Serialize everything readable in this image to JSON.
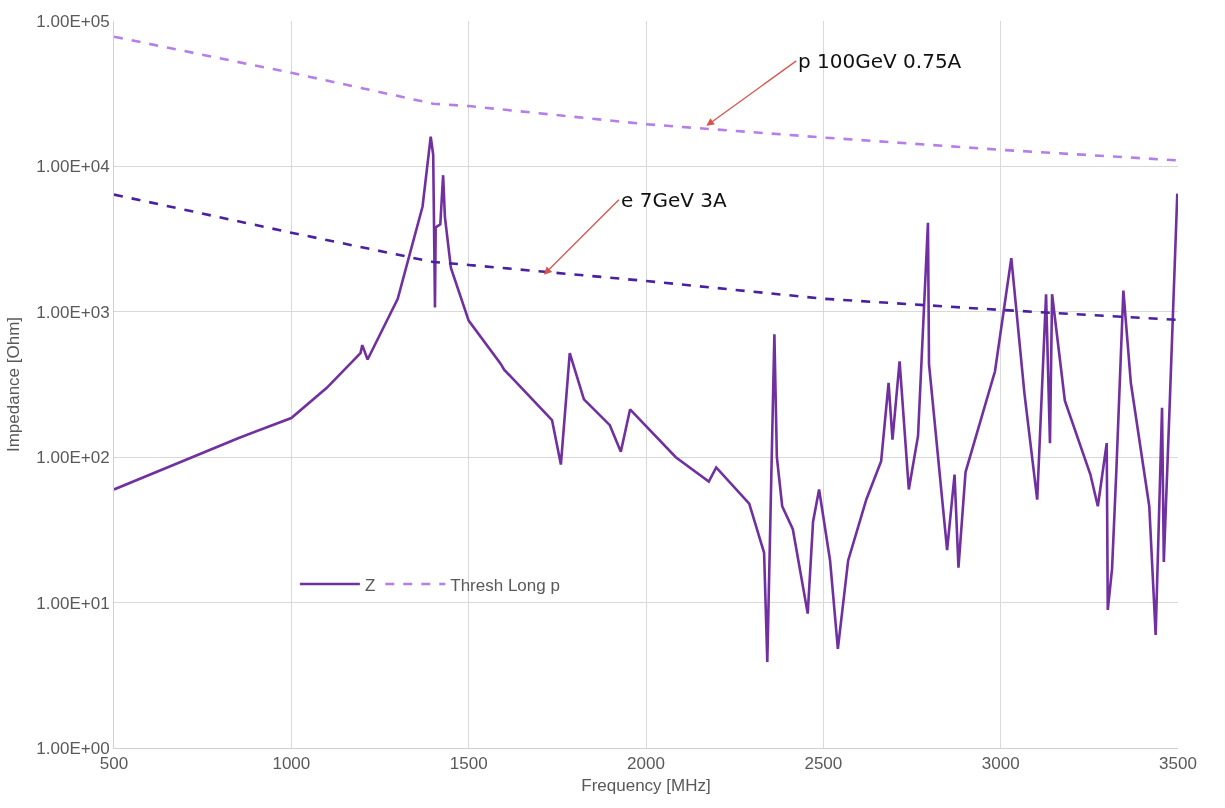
{
  "chart_data": {
    "type": "line",
    "xlabel": "Frequency [MHz]",
    "ylabel": "Impedance [Ohm]",
    "log": "y",
    "xlim": [
      500,
      3500
    ],
    "xticks": [
      500,
      1000,
      1500,
      2000,
      2500,
      3000,
      3500
    ],
    "ylim": [
      1,
      100000
    ],
    "yticks": [
      {
        "value": 1,
        "label": "1.00E+00"
      },
      {
        "value": 10,
        "label": "1.00E+01"
      },
      {
        "value": 100,
        "label": "1.00E+02"
      },
      {
        "value": 1000,
        "label": "1.00E+03"
      },
      {
        "value": 10000,
        "label": "1.00E+04"
      },
      {
        "value": 100000,
        "label": "1.00E+05"
      }
    ],
    "grid": true,
    "legend": "bottom left",
    "marker": "none",
    "series": [
      {
        "name": "Z",
        "color": "#7030a0",
        "line_style": "solid",
        "x": [
          500,
          850,
          1000,
          1100,
          1195,
          1200,
          1215,
          1300,
          1370,
          1393,
          1400,
          1405,
          1407,
          1420,
          1428,
          1433,
          1450,
          1500,
          1590,
          1600,
          1735,
          1760,
          1785,
          1825,
          1898,
          1929,
          1955,
          2084,
          2177,
          2198,
          2291,
          2333,
          2342,
          2362,
          2369,
          2384,
          2414,
          2456,
          2471,
          2488,
          2519,
          2541,
          2570,
          2621,
          2663,
          2684,
          2695,
          2715,
          2741,
          2767,
          2795,
          2798,
          2849,
          2870,
          2881,
          2901,
          2984,
          3030,
          3067,
          3103,
          3128,
          3139,
          3145,
          3181,
          3253,
          3274,
          3299,
          3302,
          3314,
          3326,
          3346,
          3367,
          3419,
          3437,
          3455,
          3460,
          3477,
          3498
        ],
        "values": [
          60,
          135,
          186,
          300,
          520,
          590,
          470,
          1230,
          5300,
          16000,
          12000,
          1070,
          3800,
          4000,
          8700,
          4500,
          2000,
          870,
          440,
          400,
          180,
          89,
          520,
          250,
          166,
          109,
          213,
          100,
          68,
          85,
          48,
          22,
          3.9,
          700,
          100,
          46,
          32,
          8.4,
          36,
          60,
          19.5,
          4.8,
          19.5,
          51,
          94,
          325,
          132,
          457,
          60,
          140,
          4100,
          437,
          23,
          76,
          17.4,
          79,
          390,
          2340,
          275,
          51,
          1320,
          125,
          1320,
          245,
          76,
          46,
          125,
          8.9,
          17,
          79,
          1400,
          325,
          46,
          6,
          219,
          19,
          245,
          6500
        ]
      },
      {
        "name": "Thresh Long p",
        "color": "#b57ee8",
        "line_style": "dashed",
        "x": [
          500,
          1000,
          1400,
          1500,
          2000,
          2500,
          3000,
          3500
        ],
        "values": [
          78000,
          44000,
          27000,
          26000,
          19500,
          15800,
          13000,
          11000
        ]
      },
      {
        "color": "#4a1fa0",
        "line_style": "dashed",
        "x": [
          500,
          1000,
          1400,
          1500,
          2000,
          2500,
          3000,
          3500
        ],
        "values": [
          6400,
          3500,
          2200,
          2100,
          1630,
          1230,
          1030,
          880
        ]
      }
    ],
    "annotations": [
      {
        "text": "p 100GeV 0.75A",
        "x": 2170,
        "y": 19000
      },
      {
        "text": "e 7GeV 3A",
        "x": 1712,
        "y": 1800
      }
    ]
  }
}
